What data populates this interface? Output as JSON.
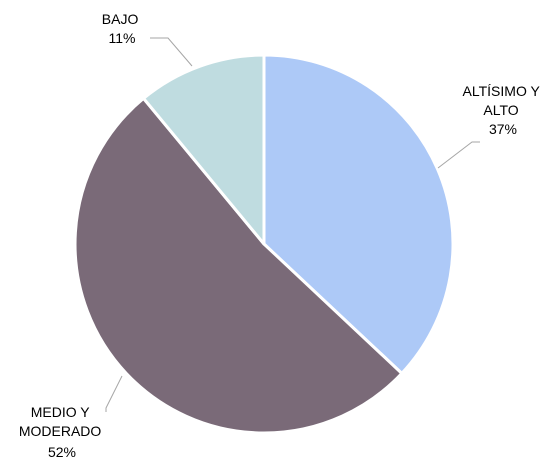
{
  "chart_data": {
    "type": "pie",
    "title": "",
    "start_angle_deg": 0,
    "direction": "clockwise",
    "slices": [
      {
        "label_lines": [
          "ALTÍSIMO Y",
          "ALTO"
        ],
        "pct_label": "37%",
        "value": 37,
        "color": "#adc9f7"
      },
      {
        "label_lines": [
          "MEDIO Y",
          "MODERADO"
        ],
        "pct_label": "52%",
        "value": 52,
        "color": "#7a6a78"
      },
      {
        "label_lines": [
          "BAJO"
        ],
        "pct_label": "11%",
        "value": 11,
        "color": "#bfdce0"
      }
    ]
  }
}
